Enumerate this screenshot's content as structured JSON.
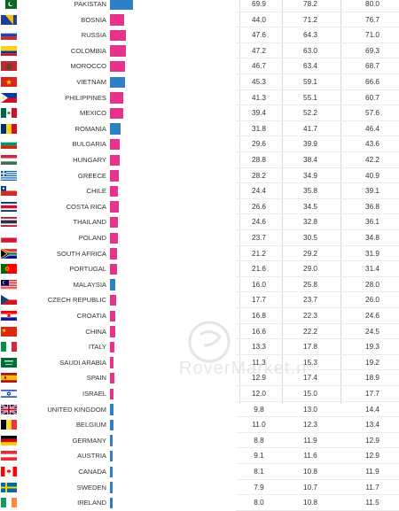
{
  "chart_data": {
    "type": "table",
    "columns": [
      "",
      "",
      ""
    ],
    "bar_colors": [
      "#e6348c",
      "#2f7fc8"
    ],
    "rows": [
      {
        "country": "PAKISTAN",
        "flag": "pakistan-flag",
        "bar": 69.9,
        "values": [
          "69.9",
          "78.2",
          "80.0"
        ]
      },
      {
        "country": "BOSNIA",
        "flag": "bosnia-flag",
        "bar": 44.0,
        "values": [
          "44.0",
          "71.2",
          "76.7"
        ]
      },
      {
        "country": "RUSSIA",
        "flag": "russia-flag",
        "bar": 47.6,
        "values": [
          "47.6",
          "64.3",
          "71.0"
        ]
      },
      {
        "country": "COLOMBIA",
        "flag": "colombia-flag",
        "bar": 47.2,
        "values": [
          "47.2",
          "63.0",
          "69.3"
        ]
      },
      {
        "country": "MOROCCO",
        "flag": "morocco-flag",
        "bar": 46.7,
        "values": [
          "46.7",
          "63.4",
          "68.7"
        ]
      },
      {
        "country": "VIETNAM",
        "flag": "vietnam-flag",
        "bar": 45.3,
        "values": [
          "45.3",
          "59.1",
          "66.6"
        ]
      },
      {
        "country": "PHILIPPINES",
        "flag": "philippines-flag",
        "bar": 41.3,
        "values": [
          "41.3",
          "55.1",
          "60.7"
        ]
      },
      {
        "country": "MEXICO",
        "flag": "mexico-flag",
        "bar": 39.4,
        "values": [
          "39.4",
          "52.2",
          "57.6"
        ]
      },
      {
        "country": "ROMANIA",
        "flag": "romania-flag",
        "bar": 31.8,
        "values": [
          "31.8",
          "41.7",
          "46.4"
        ]
      },
      {
        "country": "BULGARIA",
        "flag": "bulgaria-flag",
        "bar": 29.6,
        "values": [
          "29.6",
          "39.9",
          "43.6"
        ]
      },
      {
        "country": "HUNGARY",
        "flag": "hungary-flag",
        "bar": 28.8,
        "values": [
          "28.8",
          "38.4",
          "42.2"
        ]
      },
      {
        "country": "GREECE",
        "flag": "greece-flag",
        "bar": 28.2,
        "values": [
          "28.2",
          "34.9",
          "40.9"
        ]
      },
      {
        "country": "CHILE",
        "flag": "chile-flag",
        "bar": 24.4,
        "values": [
          "24.4",
          "35.8",
          "39.1"
        ]
      },
      {
        "country": "COSTA RICA",
        "flag": "costa-rica-flag",
        "bar": 26.6,
        "values": [
          "26.6",
          "34.5",
          "36.8"
        ]
      },
      {
        "country": "THAILAND",
        "flag": "thailand-flag",
        "bar": 24.6,
        "values": [
          "24.6",
          "32.8",
          "36.1"
        ]
      },
      {
        "country": "POLAND",
        "flag": "poland-flag",
        "bar": 23.7,
        "values": [
          "23.7",
          "30.5",
          "34.8"
        ]
      },
      {
        "country": "SOUTH AFRICA",
        "flag": "south-africa-flag",
        "bar": 21.2,
        "values": [
          "21.2",
          "29.2",
          "31.9"
        ]
      },
      {
        "country": "PORTUGAL",
        "flag": "portugal-flag",
        "bar": 21.6,
        "values": [
          "21.6",
          "29.0",
          "31.4"
        ]
      },
      {
        "country": "MALAYSIA",
        "flag": "malaysia-flag",
        "bar": 16.0,
        "values": [
          "16.0",
          "25.8",
          "28.0"
        ]
      },
      {
        "country": "CZECH REPUBLIC",
        "flag": "czech-republic-flag",
        "bar": 17.7,
        "values": [
          "17.7",
          "23.7",
          "26.0"
        ]
      },
      {
        "country": "CROATIA",
        "flag": "croatia-flag",
        "bar": 16.8,
        "values": [
          "16.8",
          "22.3",
          "24.6"
        ]
      },
      {
        "country": "CHINA",
        "flag": "china-flag",
        "bar": 16.6,
        "values": [
          "16.6",
          "22.2",
          "24.5"
        ]
      },
      {
        "country": "ITALY",
        "flag": "italy-flag",
        "bar": 13.3,
        "values": [
          "13.3",
          "17.8",
          "19.3"
        ]
      },
      {
        "country": "SAUDI ARABIA",
        "flag": "saudi-arabia-flag",
        "bar": 11.3,
        "values": [
          "11.3",
          "15.3",
          "19.2"
        ]
      },
      {
        "country": "SPAIN",
        "flag": "spain-flag",
        "bar": 12.9,
        "values": [
          "12.9",
          "17.4",
          "18.9"
        ]
      },
      {
        "country": "ISRAEL",
        "flag": "israel-flag",
        "bar": 12.0,
        "values": [
          "12.0",
          "15.0",
          "17.7"
        ]
      },
      {
        "country": "UNITED KINGDOM",
        "flag": "united-kingdom-flag",
        "bar": 9.8,
        "values": [
          "9.8",
          "13.0",
          "14.4"
        ]
      },
      {
        "country": "BELGIUM",
        "flag": "belgium-flag",
        "bar": 11.0,
        "values": [
          "11.0",
          "12.3",
          "13.4"
        ]
      },
      {
        "country": "GERMANY",
        "flag": "germany-flag",
        "bar": 8.8,
        "values": [
          "8.8",
          "11.9",
          "12.9"
        ]
      },
      {
        "country": "AUSTRIA",
        "flag": "austria-flag",
        "bar": 9.1,
        "values": [
          "9.1",
          "11.6",
          "12.9"
        ]
      },
      {
        "country": "CANADA",
        "flag": "canada-flag",
        "bar": 8.1,
        "values": [
          "8.1",
          "10.8",
          "11.9"
        ]
      },
      {
        "country": "SWEDEN",
        "flag": "sweden-flag",
        "bar": 7.9,
        "values": [
          "7.9",
          "10.7",
          "11.7"
        ]
      },
      {
        "country": "IRELAND",
        "flag": "ireland-flag",
        "bar": 8.0,
        "values": [
          "8.0",
          "10.8",
          "11.5"
        ]
      }
    ]
  }
}
